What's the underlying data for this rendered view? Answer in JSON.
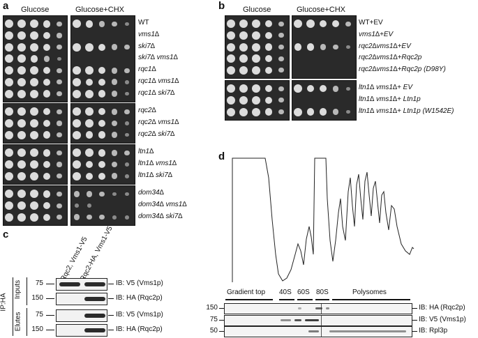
{
  "panel_a": {
    "label": "a",
    "headers": [
      "Glucose",
      "Glucose+CHX"
    ],
    "groups": [
      {
        "rows": [
          {
            "label": "WT",
            "italic": false,
            "cells": [
              [
                5,
                5,
                5,
                4,
                2
              ],
              [
                5,
                4,
                3,
                2,
                1
              ]
            ]
          },
          {
            "label": "vms1∆",
            "italic": true,
            "cells": [
              [
                5,
                5,
                5,
                4,
                2
              ],
              [
                0,
                0,
                0,
                0,
                0
              ]
            ]
          },
          {
            "label": "ski7∆",
            "italic": true,
            "cells": [
              [
                5,
                5,
                5,
                4,
                2
              ],
              [
                5,
                5,
                4,
                3,
                2
              ]
            ]
          },
          {
            "label": "ski7∆ vms1∆",
            "italic": true,
            "cells": [
              [
                5,
                5,
                4,
                3,
                1
              ],
              [
                0,
                0,
                0,
                0,
                0
              ]
            ]
          },
          {
            "label": "rqc1∆",
            "italic": true,
            "cells": [
              [
                5,
                5,
                5,
                4,
                2
              ],
              [
                5,
                5,
                4,
                3,
                2
              ]
            ]
          },
          {
            "label": "rqc1∆ vms1∆",
            "italic": true,
            "cells": [
              [
                5,
                5,
                5,
                4,
                2
              ],
              [
                5,
                4,
                4,
                3,
                1
              ]
            ]
          },
          {
            "label": "rqc1∆ ski7∆",
            "italic": true,
            "cells": [
              [
                5,
                5,
                5,
                4,
                2
              ],
              [
                5,
                5,
                4,
                3,
                1
              ]
            ]
          }
        ]
      },
      {
        "rows": [
          {
            "label": "rqc2∆",
            "italic": true,
            "cells": [
              [
                5,
                5,
                5,
                4,
                2
              ],
              [
                5,
                5,
                4,
                3,
                2
              ]
            ]
          },
          {
            "label": "rqc2∆ vms1∆",
            "italic": true,
            "cells": [
              [
                5,
                5,
                5,
                4,
                2
              ],
              [
                5,
                5,
                4,
                3,
                1
              ]
            ]
          },
          {
            "label": "rqc2∆ ski7∆",
            "italic": true,
            "cells": [
              [
                5,
                5,
                5,
                4,
                2
              ],
              [
                5,
                4,
                4,
                3,
                1
              ]
            ]
          }
        ]
      },
      {
        "rows": [
          {
            "label": "ltn1∆",
            "italic": true,
            "cells": [
              [
                5,
                5,
                5,
                4,
                2
              ],
              [
                5,
                5,
                4,
                3,
                2
              ]
            ]
          },
          {
            "label": "ltn1∆ vms1∆",
            "italic": true,
            "cells": [
              [
                5,
                5,
                5,
                4,
                2
              ],
              [
                5,
                4,
                4,
                3,
                1
              ]
            ]
          },
          {
            "label": "ltn1∆ ski7∆",
            "italic": true,
            "cells": [
              [
                5,
                5,
                5,
                4,
                2
              ],
              [
                5,
                4,
                4,
                3,
                1
              ]
            ]
          }
        ]
      },
      {
        "rows": [
          {
            "label": "dom34∆",
            "italic": true,
            "cells": [
              [
                5,
                5,
                5,
                4,
                2
              ],
              [
                3,
                3,
                2,
                1,
                1
              ]
            ]
          },
          {
            "label": "dom34∆ vms1∆",
            "italic": true,
            "cells": [
              [
                5,
                5,
                5,
                4,
                2
              ],
              [
                1,
                1,
                0,
                0,
                0
              ]
            ]
          },
          {
            "label": "dom34∆ ski7∆",
            "italic": true,
            "cells": [
              [
                5,
                5,
                5,
                4,
                2
              ],
              [
                3,
                2,
                2,
                1,
                1
              ]
            ]
          }
        ]
      }
    ]
  },
  "panel_b": {
    "label": "b",
    "headers": [
      "Glucose",
      "Glucose+CHX"
    ],
    "groups": [
      {
        "rows": [
          {
            "label": "WT+EV",
            "italic": false,
            "cells": [
              [
                5,
                5,
                5,
                4,
                2
              ],
              [
                5,
                5,
                4,
                4,
                2
              ]
            ]
          },
          {
            "label": "vms1∆+EV",
            "italic": true,
            "cells": [
              [
                5,
                5,
                5,
                4,
                2
              ],
              [
                0,
                0,
                0,
                0,
                0
              ]
            ]
          },
          {
            "label": "rqc2∆vms1∆+EV",
            "italic": true,
            "cells": [
              [
                5,
                5,
                5,
                4,
                2
              ],
              [
                4,
                4,
                3,
                2,
                1
              ]
            ]
          },
          {
            "label": "rqc2∆vms1∆+Rqc2p",
            "italic": true,
            "cells": [
              [
                5,
                5,
                5,
                4,
                2
              ],
              [
                0,
                0,
                0,
                0,
                0
              ]
            ]
          },
          {
            "label": "rqc2∆vms1∆+Rqc2p (D98Y)",
            "italic": true,
            "cells": [
              [
                5,
                5,
                5,
                4,
                2
              ],
              [
                0,
                0,
                0,
                0,
                0
              ]
            ]
          }
        ]
      },
      {
        "rows": [
          {
            "label": "ltn1∆ vms1∆+ EV",
            "italic": true,
            "cells": [
              [
                5,
                5,
                5,
                4,
                2
              ],
              [
                5,
                4,
                4,
                3,
                1
              ]
            ]
          },
          {
            "label": "ltn1∆ vms1∆+ Ltn1p",
            "italic": true,
            "cells": [
              [
                5,
                5,
                5,
                4,
                2
              ],
              [
                0,
                0,
                0,
                0,
                0
              ]
            ]
          },
          {
            "label": "ltn1∆ vms1∆+ Ltn1p (W1542E)",
            "italic": true,
            "cells": [
              [
                5,
                5,
                5,
                4,
                2
              ],
              [
                5,
                4,
                4,
                3,
                1
              ]
            ]
          }
        ]
      }
    ]
  },
  "panel_c": {
    "label": "c",
    "lanes": [
      "Rqc2, Vms1-V5",
      "Rqc2-HA, Vms1-V5"
    ],
    "side_group": "IP:HA",
    "sections": [
      "Inputs",
      "Elutes"
    ],
    "blots": [
      {
        "mw": "75",
        "label": "IB: V5 (Vms1p)",
        "bands": [
          1,
          1
        ]
      },
      {
        "mw": "150",
        "label": "IB: HA (Rqc2p)",
        "bands": [
          0,
          1
        ]
      },
      {
        "mw": "75",
        "label": "IB: V5 (Vms1p)",
        "bands": [
          0,
          1
        ]
      },
      {
        "mw": "150",
        "label": "IB: HA (Rqc2p)",
        "bands": [
          0,
          1
        ]
      }
    ]
  },
  "panel_d": {
    "label": "d",
    "fractions": [
      "Gradient top",
      "40S",
      "60S",
      "80S",
      "Polysomes"
    ],
    "blots": [
      {
        "mw": "150",
        "label": "IB: HA (Rqc2p)"
      },
      {
        "mw": "75",
        "label": "IB: V5 (Vms1p)"
      },
      {
        "mw": "50",
        "label": "IB: Rpl3p"
      }
    ]
  }
}
